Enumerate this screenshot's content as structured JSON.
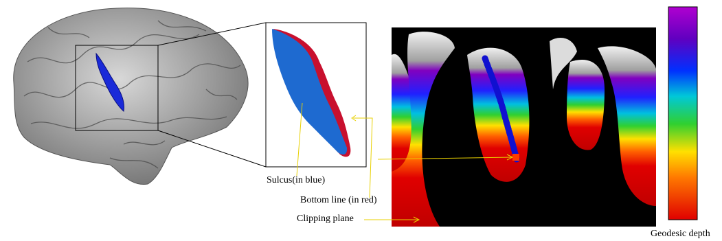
{
  "labels": {
    "sulcus": "Sulcus(in blue)",
    "bottom_line": "Bottom line (in red)",
    "clipping_plane": "Clipping plane",
    "colorbar": "Geodesic depth"
  }
}
